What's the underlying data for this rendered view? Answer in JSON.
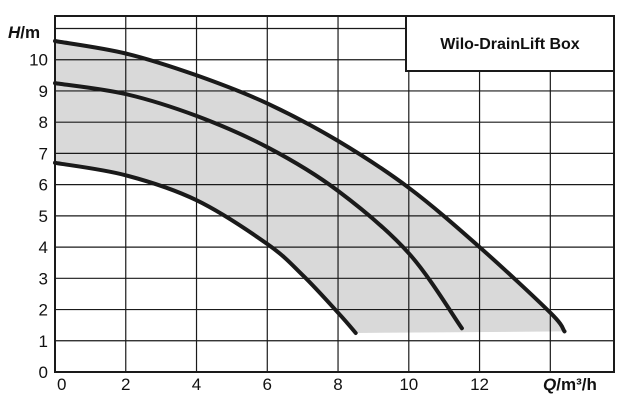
{
  "chart_data": {
    "type": "line",
    "title": "Wilo-DrainLift Box",
    "ylabel_symbol": "H",
    "ylabel_unit": "/m",
    "xlabel_symbol": "Q",
    "xlabel_unit": "/m³/h",
    "xlim": [
      0,
      15.8
    ],
    "ylim": [
      0,
      11.4
    ],
    "x_ticks": [
      0,
      2,
      4,
      6,
      8,
      10,
      12
    ],
    "y_ticks": [
      0,
      1,
      2,
      3,
      4,
      5,
      6,
      7,
      8,
      9,
      10
    ],
    "grid_x": [
      0,
      2,
      4,
      6,
      8,
      10,
      12,
      14,
      15.8
    ],
    "grid_y": [
      0,
      1,
      2,
      3,
      4,
      5,
      6,
      7,
      8,
      9,
      10,
      11,
      11.4
    ],
    "grid": true,
    "fill_color": "#d9d9d9",
    "line_color": "#1a1a1a",
    "series": [
      {
        "x": [
          0,
          2,
          4,
          6,
          8,
          10,
          12,
          14,
          14.4
        ],
        "y": [
          10.6,
          10.2,
          9.5,
          8.6,
          7.4,
          5.9,
          4.0,
          1.9,
          1.3
        ]
      },
      {
        "x": [
          0,
          2,
          4,
          6,
          8,
          10,
          11.5
        ],
        "y": [
          9.25,
          8.9,
          8.2,
          7.2,
          5.8,
          3.8,
          1.4
        ]
      },
      {
        "x": [
          0,
          2,
          4,
          6,
          7,
          8,
          8.5
        ],
        "y": [
          6.7,
          6.3,
          5.5,
          4.1,
          3.1,
          1.9,
          1.25
        ]
      }
    ]
  }
}
